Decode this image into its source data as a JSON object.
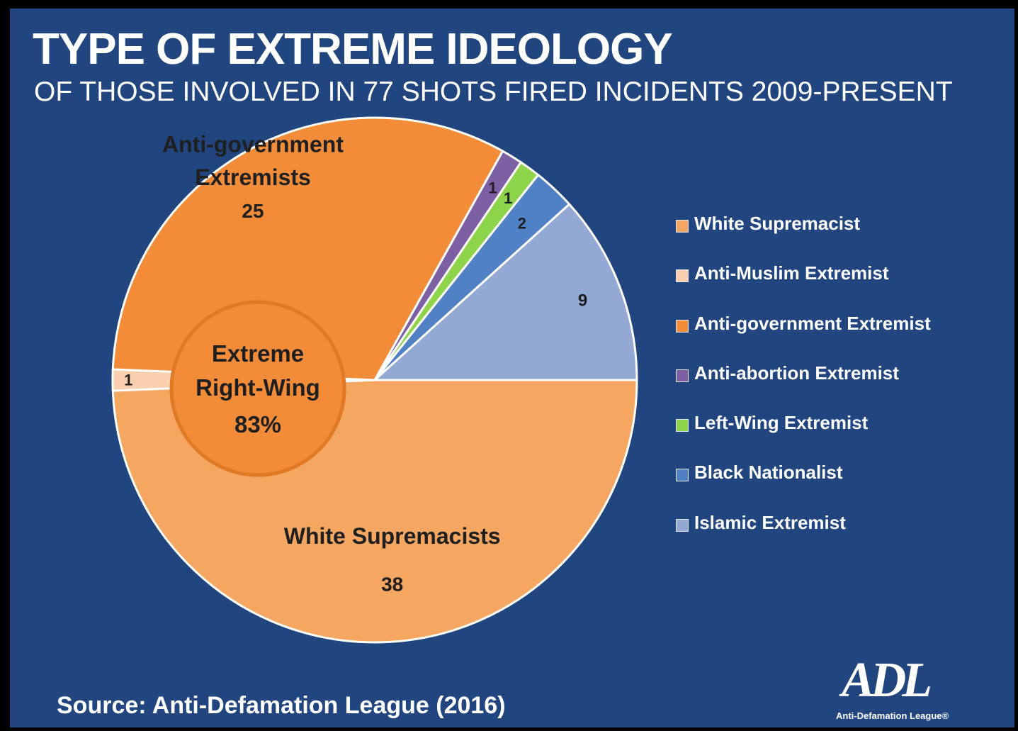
{
  "header": {
    "title": "TYPE OF EXTREME IDEOLOGY",
    "subtitle": "OF THOSE INVOLVED IN 77 SHOTS FIRED INCIDENTS  2009-PRESENT"
  },
  "chart_data": {
    "type": "pie",
    "title": "TYPE OF EXTREME IDEOLOGY",
    "subtitle": "OF THOSE INVOLVED IN 77 SHOTS FIRED INCIDENTS  2009-PRESENT",
    "categories": [
      "White Supremacist",
      "Anti-Muslim Extremist",
      "Anti-government Extremist",
      "Anti-abortion Extremist",
      "Left-Wing Extremist",
      "Black Nationalist",
      "Islamic Extremist"
    ],
    "values": [
      38,
      1,
      25,
      1,
      1,
      2,
      9
    ],
    "total": 77,
    "colors": [
      "#f5a661",
      "#f9cfb0",
      "#f28c38",
      "#7d5fa3",
      "#8ed44a",
      "#4f81c4",
      "#93a9d3"
    ],
    "slice_labels": [
      {
        "name": "White Supremacists",
        "value": "38"
      },
      {
        "name": "",
        "value": "1"
      },
      {
        "name": "Anti-government Extremists",
        "value": "25"
      },
      {
        "name": "",
        "value": "1"
      },
      {
        "name": "",
        "value": "1"
      },
      {
        "name": "",
        "value": "2"
      },
      {
        "name": "",
        "value": "9"
      }
    ],
    "center_group": {
      "line1": "Extreme",
      "line2": "Right-Wing",
      "value": "83%"
    },
    "legend": [
      "White Supremacist",
      "Anti-Muslim Extremist",
      "Anti-government Extremist",
      "Anti-abortion Extremist",
      "Left-Wing Extremist",
      "Black Nationalist",
      "Islamic Extremist"
    ],
    "legend_position": "right",
    "background": "#21467f"
  },
  "footer": {
    "source": "Source: Anti-Defamation League (2016)",
    "logo_mark": "ADL",
    "logo_name": "Anti-Defamation League®"
  }
}
